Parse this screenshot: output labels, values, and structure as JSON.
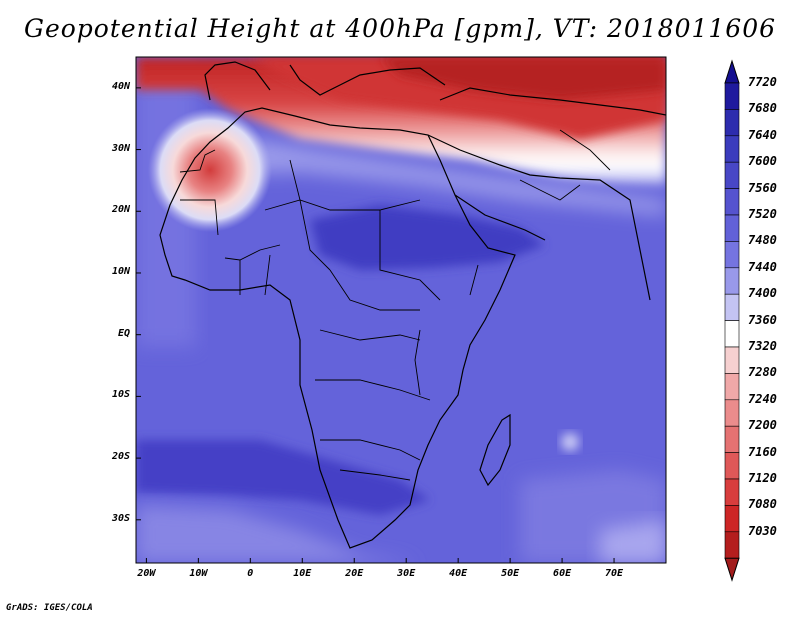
{
  "title": "Geopotential Height at 400hPa [gpm], VT: 2018011606",
  "credit": "GrADS: IGES/COLA",
  "map": {
    "lon_range": [
      -22,
      80
    ],
    "lat_range": [
      -37,
      45
    ],
    "lat_ticks": [
      {
        "value": 40,
        "label": "40N"
      },
      {
        "value": 30,
        "label": "30N"
      },
      {
        "value": 20,
        "label": "20N"
      },
      {
        "value": 10,
        "label": "10N"
      },
      {
        "value": 0,
        "label": "EQ"
      },
      {
        "value": -10,
        "label": "10S"
      },
      {
        "value": -20,
        "label": "20S"
      },
      {
        "value": -30,
        "label": "30S"
      }
    ],
    "lon_ticks": [
      {
        "value": -20,
        "label": "20W"
      },
      {
        "value": -10,
        "label": "10W"
      },
      {
        "value": 0,
        "label": "0"
      },
      {
        "value": 10,
        "label": "10E"
      },
      {
        "value": 20,
        "label": "20E"
      },
      {
        "value": 30,
        "label": "30E"
      },
      {
        "value": 40,
        "label": "40E"
      },
      {
        "value": 50,
        "label": "50E"
      },
      {
        "value": 60,
        "label": "60E"
      },
      {
        "value": 70,
        "label": "70E"
      }
    ]
  },
  "colorbar": {
    "levels": [
      "7720",
      "7680",
      "7640",
      "7600",
      "7560",
      "7520",
      "7480",
      "7440",
      "7400",
      "7360",
      "7320",
      "7280",
      "7240",
      "7200",
      "7160",
      "7120",
      "7080",
      "7030"
    ],
    "colors": [
      "#1f1a9e",
      "#2d2cae",
      "#3b3cbd",
      "#4847c6",
      "#5553cf",
      "#6261d8",
      "#7574e0",
      "#9999ea",
      "#c4c4f3",
      "#ffffff",
      "#f6d0d0",
      "#f0a8a8",
      "#eb8c8c",
      "#e57272",
      "#df5858",
      "#d83d3d",
      "#cd2626",
      "#b41e1e"
    ],
    "top_arrow_color": "#140f90",
    "bottom_arrow_color": "#a21c1c"
  }
}
